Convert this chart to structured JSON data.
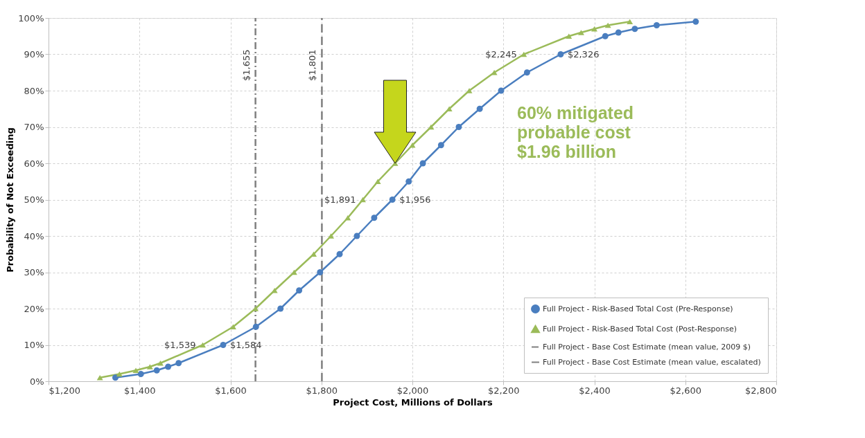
{
  "chart_data": {
    "type": "line",
    "xlabel": "Project Cost, Millions of Dollars",
    "ylabel": "Probability of Not Exceeding",
    "xlim": [
      1200,
      2800
    ],
    "xticks": [
      {
        "value": 1200,
        "label": "$1,200"
      },
      {
        "value": 1400,
        "label": "$1,400"
      },
      {
        "value": 1600,
        "label": "$1,600"
      },
      {
        "value": 1800,
        "label": "$1,800"
      },
      {
        "value": 2000,
        "label": "$2,000"
      },
      {
        "value": 2200,
        "label": "$2,200"
      },
      {
        "value": 2400,
        "label": "$2,400"
      },
      {
        "value": 2600,
        "label": "$2,600"
      },
      {
        "value": 2800,
        "label": "$2,800"
      }
    ],
    "ylim": [
      0,
      100
    ],
    "yticks": [
      {
        "value": 0,
        "label": "0%"
      },
      {
        "value": 10,
        "label": "10%"
      },
      {
        "value": 20,
        "label": "20%"
      },
      {
        "value": 30,
        "label": "30%"
      },
      {
        "value": 40,
        "label": "40%"
      },
      {
        "value": 50,
        "label": "50%"
      },
      {
        "value": 60,
        "label": "60%"
      },
      {
        "value": 70,
        "label": "70%"
      },
      {
        "value": 80,
        "label": "80%"
      },
      {
        "value": 90,
        "label": "90%"
      },
      {
        "value": 100,
        "label": "100%"
      }
    ],
    "grid": true,
    "legend": "bottom right",
    "series": [
      {
        "name": "Full Project - Risk-Based Total Cost (Pre-Response)",
        "color": "#4a7ebf",
        "marker": "circle",
        "line_style": "solid",
        "x": [
          1347,
          1403,
          1438,
          1463,
          1486,
          1584,
          1656,
          1710,
          1751,
          1797,
          1840,
          1878,
          1916,
          1956,
          1992,
          2023,
          2063,
          2102,
          2148,
          2195,
          2252,
          2326,
          2424,
          2453,
          2489,
          2537,
          2623
        ],
        "values": [
          1,
          2,
          3,
          4,
          5,
          10,
          15,
          20,
          25,
          30,
          35,
          40,
          45,
          50,
          55,
          60,
          65,
          70,
          75,
          80,
          85,
          90,
          95,
          96,
          97,
          98,
          99
        ]
      },
      {
        "name": "Full Project - Risk-Based Total Cost (Post-Response)",
        "color": "#9bbb59",
        "marker": "triangle",
        "line_style": "solid",
        "x": [
          1313,
          1356,
          1392,
          1423,
          1446,
          1539,
          1606,
          1655,
          1697,
          1740,
          1783,
          1821,
          1858,
          1891,
          1924,
          1962,
          2000,
          2041,
          2081,
          2125,
          2180,
          2245,
          2344,
          2371,
          2400,
          2430,
          2478
        ],
        "values": [
          1,
          2,
          3,
          4,
          5,
          10,
          15,
          20,
          25,
          30,
          35,
          40,
          45,
          50,
          55,
          60,
          65,
          70,
          75,
          80,
          85,
          90,
          95,
          96,
          97,
          98,
          99
        ]
      },
      {
        "name": "Full Project - Base Cost Estimate (mean value, 2009 $)",
        "color": "#7f7f7f",
        "marker": "none",
        "line_style": "dashdot",
        "x": [
          1655,
          1655
        ],
        "values": [
          0,
          100
        ]
      },
      {
        "name": "Full Project - Base Cost Estimate (mean value, escalated)",
        "color": "#7f7f7f",
        "marker": "none",
        "line_style": "dashed",
        "x": [
          1801,
          1801
        ],
        "values": [
          0,
          100
        ]
      }
    ],
    "annotations": [
      {
        "text": "$1,655",
        "x": 1655,
        "y": 87
      },
      {
        "text": "$1,801",
        "x": 1801,
        "y": 87
      },
      {
        "text": "$1,584",
        "x": 1584,
        "y": 10
      },
      {
        "text": "$1,956",
        "x": 1956,
        "y": 50
      },
      {
        "text": "$2,326",
        "x": 2326,
        "y": 90
      },
      {
        "text": "$1,539",
        "x": 1539,
        "y": 10
      },
      {
        "text": "$1,891",
        "x": 1891,
        "y": 50
      },
      {
        "text": "$2,245",
        "x": 2245,
        "y": 90
      },
      "60%  mitigated\nprobable cost\n$1.96 billion"
    ]
  }
}
